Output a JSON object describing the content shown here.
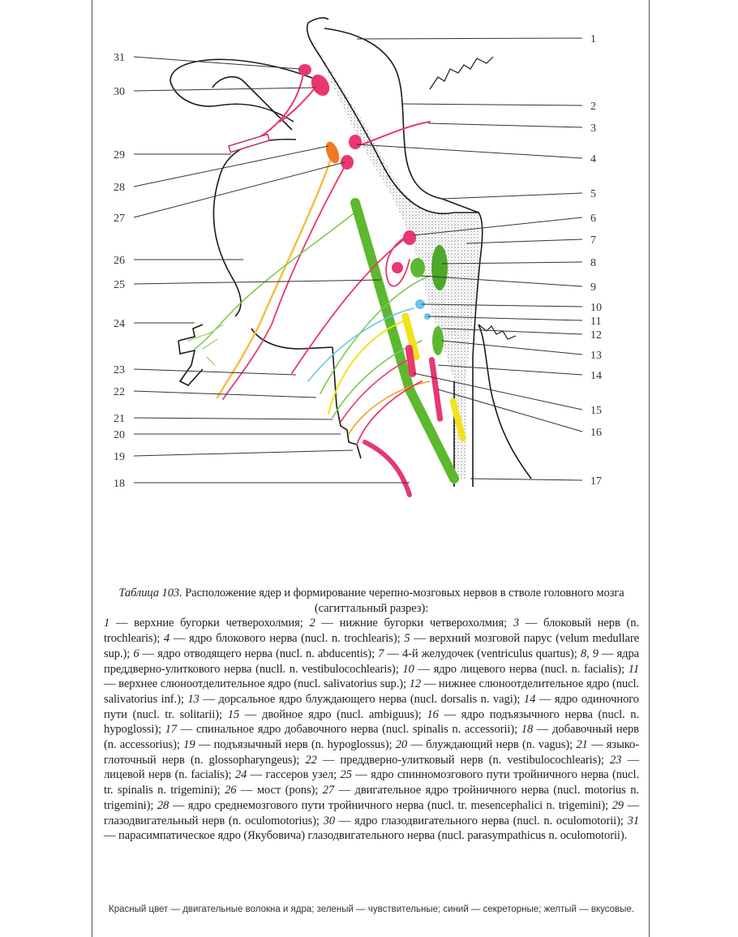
{
  "diagram": {
    "left_labels": [
      "31",
      "30",
      "29",
      "28",
      "27",
      "26",
      "25",
      "24",
      "23",
      "22",
      "21",
      "20",
      "19",
      "18"
    ],
    "right_labels": [
      "1",
      "2",
      "3",
      "4",
      "5",
      "6",
      "7",
      "8",
      "9",
      "10",
      "11",
      "12",
      "13",
      "14",
      "15",
      "16",
      "17"
    ],
    "colors": {
      "motor": "#e8386e",
      "sensory": "#5cb82e",
      "secretory": "#6cc4ea",
      "taste": "#f2e21a",
      "mesencephalic": "#f07a20",
      "stipple": "#9a9a9a",
      "outline": "#1a1a1a"
    }
  },
  "caption": {
    "title": "Таблица 103.",
    "heading": "Расположение ядер и формирование черепно-мозговых нервов в стволе головного мозга (сагиттальный разрез):",
    "items": [
      {
        "num": "1",
        "text": "верхние бугорки четверохолмия"
      },
      {
        "num": "2",
        "text": "нижние бугорки четверохолмия"
      },
      {
        "num": "3",
        "text": "блоковый нерв (n. trochlearis)"
      },
      {
        "num": "4",
        "text": "ядро блокового нерва (nucl. n. trochlearis)"
      },
      {
        "num": "5",
        "text": "верхний мозговой парус (velum medullare sup.)"
      },
      {
        "num": "6",
        "text": "ядро отводящего нерва (nucl. n. abducentis)"
      },
      {
        "num": "7",
        "text": "4-й желудочек (ventriculus quartus)"
      },
      {
        "num": "8, 9",
        "text": "ядра преддверно-улиткового нерва (nucll. n. vestibulocochlearis)"
      },
      {
        "num": "10",
        "text": "ядро лицевого нерва (nucl. n. facialis)"
      },
      {
        "num": "11",
        "text": "верхнее слюноотделительное ядро (nucl. salivatorius sup.)"
      },
      {
        "num": "12",
        "text": "нижнее слюноотделительное ядро (nucl. salivatorius inf.)"
      },
      {
        "num": "13",
        "text": "дорсальное ядро блуждающего нерва (nucl. dorsalis n. vagi)"
      },
      {
        "num": "14",
        "text": "ядро одиночного пути (nucl. tr. solitarii)"
      },
      {
        "num": "15",
        "text": "двойное ядро (nucl. ambiguus)"
      },
      {
        "num": "16",
        "text": "ядро подъязычного нерва (nucl. n. hypoglossi)"
      },
      {
        "num": "17",
        "text": "спинальное ядро добавочного нерва (nucl. spinalis n. accessorii)"
      },
      {
        "num": "18",
        "text": "добавочный нерв (n. accessorius)"
      },
      {
        "num": "19",
        "text": "подъязычный нерв (n. hypoglossus)"
      },
      {
        "num": "20",
        "text": "блуждающий нерв (n. vagus)"
      },
      {
        "num": "21",
        "text": "языко-глоточный нерв (n. glossopharyngeus)"
      },
      {
        "num": "22",
        "text": "преддверно-улитковый нерв (n. vestibulocochlearis)"
      },
      {
        "num": "23",
        "text": "лицевой нерв (n. facialis)"
      },
      {
        "num": "24",
        "text": "гассеров узел"
      },
      {
        "num": "25",
        "text": "ядро спинномозгового пути тройничного нерва (nucl. tr. spinalis n. trigemini)"
      },
      {
        "num": "26",
        "text": "мост (pons)"
      },
      {
        "num": "27",
        "text": "двигательное ядро тройничного нерва (nucl. motorius n. trigemini)"
      },
      {
        "num": "28",
        "text": "ядро среднемозгового пути тройничного нерва (nucl. tr. mesencephalici n. trigemini)"
      },
      {
        "num": "29",
        "text": "глазодвигательный нерв (n. oculomotorius)"
      },
      {
        "num": "30",
        "text": "ядро глазодвигательного нерва (nucl. n. oculomotorii)"
      },
      {
        "num": "31",
        "text": "парасимпатическое ядро (Якубовича) глазодвигательного нерва (nucl. parasympathicus n. oculomotorii)"
      }
    ],
    "legend": "Красный цвет — двигательные волокна и ядра; зеленый — чувствительные; синий — секреторные; желтый — вкусовые."
  }
}
